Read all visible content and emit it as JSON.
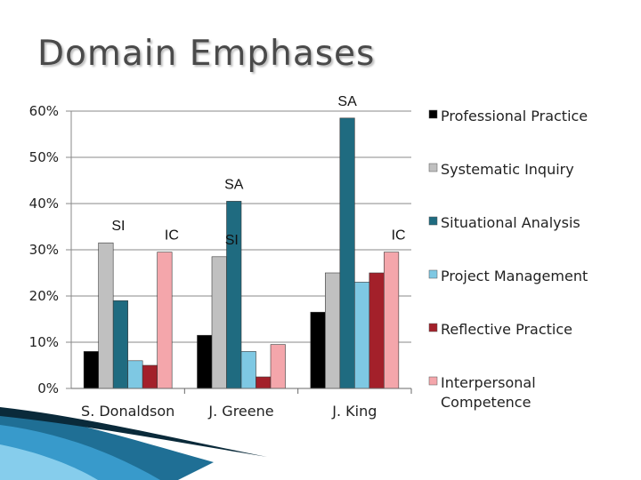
{
  "slide": {
    "title": "Domain Emphases",
    "accent_colors": [
      "#1f6f95",
      "#3b9fd0",
      "#8fd3f0",
      "#0a2a3a"
    ]
  },
  "chart_data": {
    "type": "bar",
    "title": "",
    "xlabel": "",
    "ylabel": "",
    "ylim": [
      0,
      60
    ],
    "y_unit": "%",
    "yticks": [
      "0%",
      "10%",
      "20%",
      "30%",
      "40%",
      "50%",
      "60%"
    ],
    "grid": true,
    "legend_position": "right",
    "categories": [
      "S. Donaldson",
      "J. Greene",
      "J. King"
    ],
    "series": [
      {
        "name": "Professional Practice",
        "color": "#000000",
        "values": [
          8,
          11.5,
          16.5
        ]
      },
      {
        "name": "Systematic Inquiry",
        "color": "#c0c0c0",
        "values": [
          31.5,
          28.5,
          25
        ]
      },
      {
        "name": "Situational Analysis",
        "color": "#1f6b80",
        "values": [
          19,
          40.5,
          58.5
        ]
      },
      {
        "name": "Project Management",
        "color": "#7ec8e3",
        "values": [
          6,
          8,
          23
        ]
      },
      {
        "name": "Reflective Practice",
        "color": "#a3202a",
        "values": [
          5,
          2.5,
          25
        ]
      },
      {
        "name": "Interpersonal Competence",
        "color": "#f4a6ab",
        "values": [
          29.5,
          9.5,
          29.5
        ]
      }
    ],
    "annotations": [
      {
        "text": "SI",
        "category": 0,
        "series": 1
      },
      {
        "text": "IC",
        "category": 0,
        "series": 5
      },
      {
        "text": "SA",
        "category": 1,
        "series": 2
      },
      {
        "text": "SI",
        "category": 1,
        "series": 1
      },
      {
        "text": "SA",
        "category": 2,
        "series": 2
      },
      {
        "text": "IC",
        "category": 2,
        "series": 5
      }
    ]
  }
}
